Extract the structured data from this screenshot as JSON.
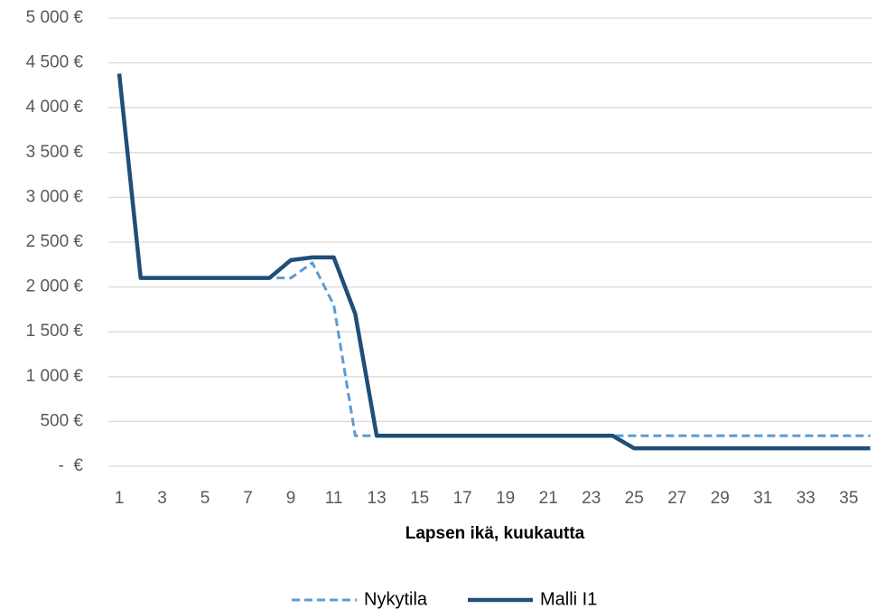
{
  "chart_data": {
    "type": "line",
    "x_label": "Lapsen ikä, kuukautta",
    "categories": [
      "1",
      null,
      "3",
      null,
      "5",
      null,
      "7",
      null,
      "9",
      null,
      "11",
      null,
      "13",
      null,
      "15",
      null,
      "17",
      null,
      "19",
      null,
      "21",
      null,
      "23",
      null,
      "25",
      null,
      "27",
      null,
      "29",
      null,
      "31",
      null,
      "33",
      null,
      "35",
      null
    ],
    "series": [
      {
        "name": "Nykytila",
        "color": "#5b9bd5",
        "dashed": true,
        "values": [
          4380,
          2100,
          2100,
          2100,
          2100,
          2100,
          2100,
          2100,
          2100,
          2270,
          1800,
          340,
          340,
          340,
          340,
          340,
          340,
          340,
          340,
          340,
          340,
          340,
          340,
          340,
          340,
          340,
          340,
          340,
          340,
          340,
          340,
          340,
          340,
          340,
          340,
          340
        ]
      },
      {
        "name": "Malli I1",
        "color": "#1f4e79",
        "dashed": false,
        "values": [
          4380,
          2100,
          2100,
          2100,
          2100,
          2100,
          2100,
          2100,
          2300,
          2330,
          2330,
          1700,
          340,
          340,
          340,
          340,
          340,
          340,
          340,
          340,
          340,
          340,
          340,
          340,
          200,
          200,
          200,
          200,
          200,
          200,
          200,
          200,
          200,
          200,
          200,
          200
        ]
      }
    ],
    "ylim": [
      0,
      5000
    ],
    "yticks": [
      {
        "value": 0,
        "label": "-  €"
      },
      {
        "value": 500,
        "label": "500 €"
      },
      {
        "value": 1000,
        "label": "1 000 €"
      },
      {
        "value": 1500,
        "label": "1 500 €"
      },
      {
        "value": 2000,
        "label": "2 000 €"
      },
      {
        "value": 2500,
        "label": "2 500 €"
      },
      {
        "value": 3000,
        "label": "3 000 €"
      },
      {
        "value": 3500,
        "label": "3 500 €"
      },
      {
        "value": 4000,
        "label": "4 000 €"
      },
      {
        "value": 4500,
        "label": "4 500 €"
      },
      {
        "value": 5000,
        "label": "5 000 €"
      }
    ],
    "grid": true,
    "legend": "bottom"
  }
}
